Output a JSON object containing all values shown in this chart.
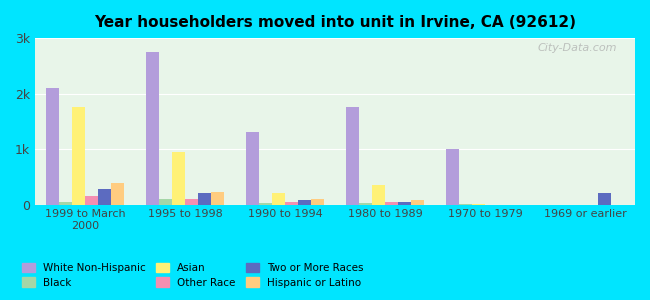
{
  "title": "Year householders moved into unit in Irvine, CA (92612)",
  "categories": [
    "1999 to March\n2000",
    "1995 to 1998",
    "1990 to 1994",
    "1980 to 1989",
    "1970 to 1979",
    "1969 or earlier"
  ],
  "series": {
    "White Non-Hispanic": [
      2100,
      2750,
      1300,
      1750,
      1000,
      0
    ],
    "Black": [
      50,
      100,
      30,
      20,
      10,
      0
    ],
    "Asian": [
      1750,
      950,
      200,
      350,
      10,
      0
    ],
    "Other Race": [
      150,
      100,
      50,
      50,
      0,
      0
    ],
    "Two or More Races": [
      280,
      200,
      80,
      50,
      0,
      200
    ],
    "Hispanic or Latino": [
      380,
      220,
      100,
      80,
      0,
      0
    ]
  },
  "colors": {
    "White Non-Hispanic": "#b39ddb",
    "Black": "#a5d6a7",
    "Asian": "#fff176",
    "Other Race": "#f48fb1",
    "Two or More Races": "#5c6bc0",
    "Hispanic or Latino": "#ffcc80"
  },
  "ylim": [
    0,
    3000
  ],
  "yticks": [
    0,
    1000,
    2000,
    3000
  ],
  "ytick_labels": [
    "0",
    "1k",
    "2k",
    "3k"
  ],
  "background_color": "#e0f7f7",
  "plot_bg_gradient_top": "#e8f5e9",
  "plot_bg_gradient_bottom": "#ffffff",
  "outer_bg": "#00e5ff",
  "watermark": "City-Data.com"
}
